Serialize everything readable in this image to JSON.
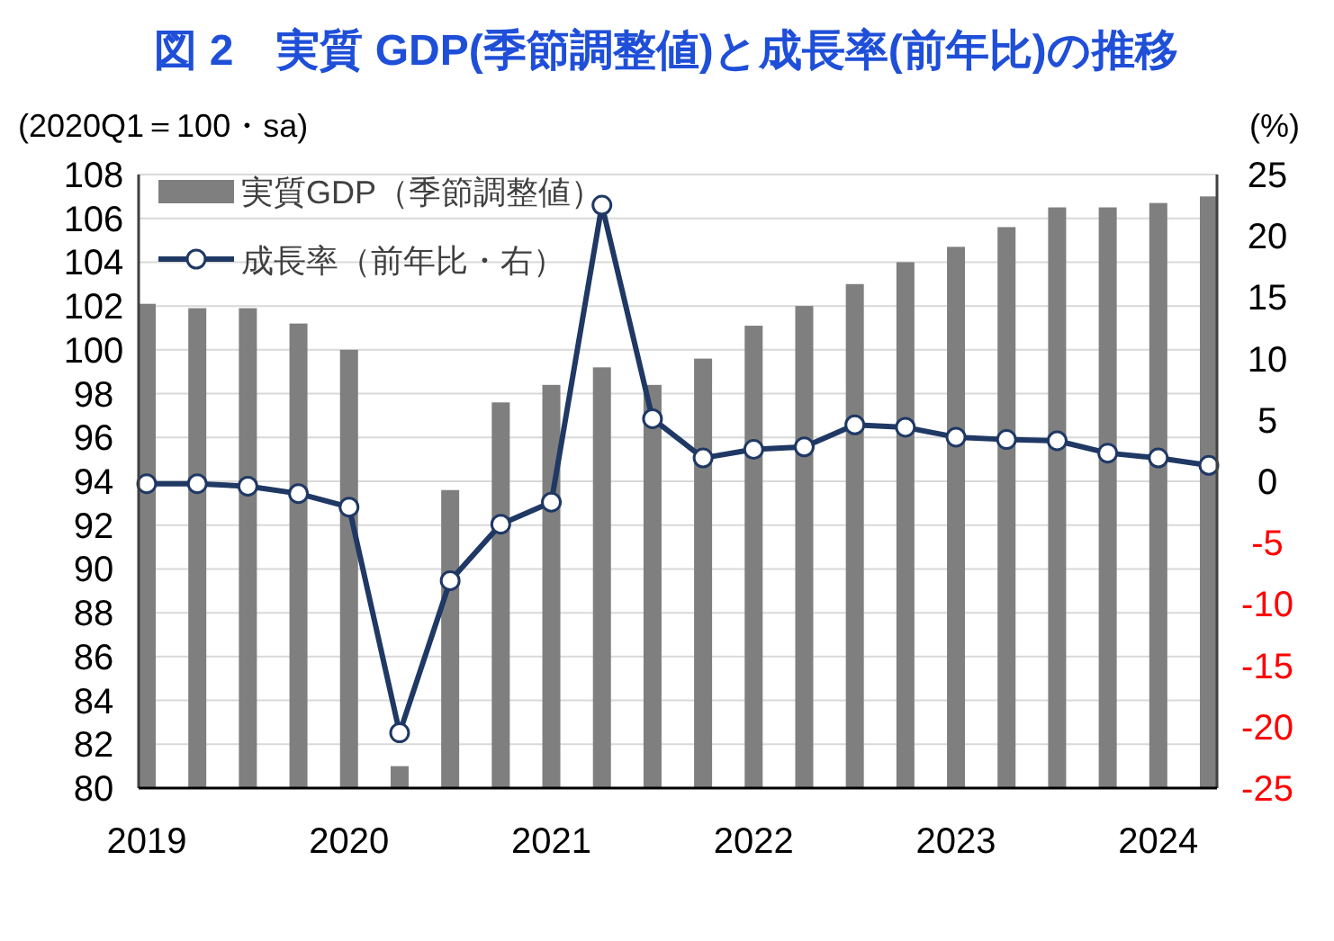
{
  "chart_data": {
    "type": "bar",
    "title": "図 2　実質 GDP(季節調整値)と成長率(前年比)の推移",
    "ylabel": "(2020Q1＝100・sa)",
    "y2label": "(%)",
    "categories": [
      "2019",
      null,
      null,
      null,
      "2020",
      null,
      null,
      null,
      "2021",
      null,
      null,
      null,
      "2022",
      null,
      null,
      null,
      "2023",
      null,
      null,
      null,
      "2024",
      null
    ],
    "series": [
      {
        "name": "実質GDP（季節調整値）",
        "type": "bar",
        "color": "#7f7f7f",
        "values": [
          102.1,
          101.9,
          101.9,
          101.2,
          100.0,
          81.0,
          93.6,
          97.6,
          98.4,
          99.2,
          98.4,
          99.6,
          101.1,
          102.0,
          103.0,
          104.0,
          104.7,
          105.6,
          106.5,
          106.5,
          106.7,
          107.0
        ]
      },
      {
        "name": "成長率（前年比・右）",
        "type": "line",
        "axis": "y2",
        "color": "#1f3864",
        "marker": "circle",
        "values": [
          -0.2,
          -0.2,
          -0.4,
          -1.0,
          -2.1,
          -20.5,
          -8.1,
          -3.5,
          -1.7,
          22.5,
          5.1,
          1.9,
          2.6,
          2.8,
          4.6,
          4.4,
          3.6,
          3.4,
          3.3,
          2.3,
          1.9,
          1.3
        ]
      }
    ],
    "ylim": [
      80,
      108
    ],
    "yticks": [
      80,
      82,
      84,
      86,
      88,
      90,
      92,
      94,
      96,
      98,
      100,
      102,
      104,
      106,
      108
    ],
    "y2lim": [
      -25,
      25
    ],
    "y2ticks": [
      -25,
      -20,
      -15,
      -10,
      -5,
      0,
      5,
      10,
      15,
      20,
      25
    ],
    "grid": "y",
    "legend": "top left"
  }
}
